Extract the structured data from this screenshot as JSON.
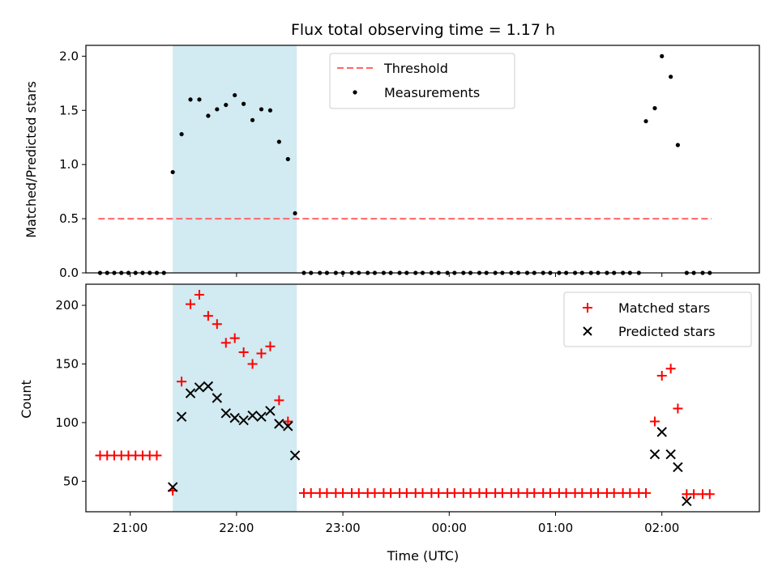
{
  "chart_data": [
    {
      "type": "scatter",
      "title": "Flux total observing time = 1.17 h",
      "xlabel": "",
      "ylabel": "Matched/Predicted stars",
      "ylim": [
        0,
        2.1
      ],
      "yticks": [
        0.0,
        0.5,
        1.0,
        1.5,
        2.0
      ],
      "ytick_labels": [
        "0.0",
        "0.5",
        "1.0",
        "1.5",
        "2.0"
      ],
      "x_range": [
        "20:35",
        "02:55"
      ],
      "xticks": [
        "21:00",
        "22:00",
        "23:00",
        "00:00",
        "01:00",
        "02:00"
      ],
      "grid": false,
      "legend_position": "top-center",
      "highlight_span": {
        "x_start": "21:24",
        "x_end": "22:34",
        "color": "#add8e6"
      },
      "threshold": {
        "name": "Threshold",
        "value": 0.5,
        "x_start": "20:42",
        "x_end": "02:28",
        "color": "#ff6666",
        "style": "dashed"
      },
      "series": [
        {
          "name": "Measurements",
          "color": "#000000",
          "marker": "dot",
          "x": [
            "20:43",
            "20:47",
            "20:51",
            "20:55",
            "20:59",
            "21:03",
            "21:07",
            "21:11",
            "21:15",
            "21:19",
            "21:24",
            "21:29",
            "21:34",
            "21:39",
            "21:44",
            "21:49",
            "21:54",
            "21:59",
            "22:04",
            "22:09",
            "22:14",
            "22:19",
            "22:24",
            "22:29",
            "22:33",
            "22:38",
            "22:42",
            "22:47",
            "22:51",
            "22:56",
            "23:00",
            "23:05",
            "23:09",
            "23:14",
            "23:18",
            "23:23",
            "23:27",
            "23:32",
            "23:36",
            "23:41",
            "23:45",
            "23:50",
            "23:54",
            "23:59",
            "00:03",
            "00:08",
            "00:12",
            "00:17",
            "00:21",
            "00:26",
            "00:30",
            "00:35",
            "00:39",
            "00:44",
            "00:48",
            "00:53",
            "00:57",
            "01:02",
            "01:06",
            "01:11",
            "01:15",
            "01:20",
            "01:24",
            "01:29",
            "01:33",
            "01:38",
            "01:42",
            "01:47",
            "01:51",
            "01:56",
            "02:00",
            "02:05",
            "02:09",
            "02:14",
            "02:18",
            "02:23",
            "02:27"
          ],
          "values": [
            0,
            0,
            0,
            0,
            0,
            0,
            0,
            0,
            0,
            0,
            0.93,
            1.28,
            1.6,
            1.6,
            1.45,
            1.51,
            1.55,
            1.64,
            1.56,
            1.41,
            1.51,
            1.5,
            1.21,
            1.05,
            0.55,
            0,
            0,
            0,
            0,
            0,
            0,
            0,
            0,
            0,
            0,
            0,
            0,
            0,
            0,
            0,
            0,
            0,
            0,
            0,
            0,
            0,
            0,
            0,
            0,
            0,
            0,
            0,
            0,
            0,
            0,
            0,
            0,
            0,
            0,
            0,
            0,
            0,
            0,
            0,
            0,
            0,
            0,
            0,
            1.4,
            1.52,
            2.0,
            1.81,
            1.18,
            0,
            0,
            0,
            0
          ]
        }
      ]
    },
    {
      "type": "scatter",
      "title": "",
      "xlabel": "Time (UTC)",
      "ylabel": "Count",
      "ylim": [
        24,
        218
      ],
      "yticks": [
        50,
        100,
        150,
        200
      ],
      "ytick_labels": [
        "50",
        "100",
        "150",
        "200"
      ],
      "x_range": [
        "20:35",
        "02:55"
      ],
      "xticks": [
        "21:00",
        "22:00",
        "23:00",
        "00:00",
        "01:00",
        "02:00"
      ],
      "grid": false,
      "legend_position": "top-right",
      "highlight_span": {
        "x_start": "21:24",
        "x_end": "22:34",
        "color": "#add8e6"
      },
      "series": [
        {
          "name": "Matched stars",
          "color": "#ff0000",
          "marker": "plus",
          "x": [
            "20:43",
            "20:47",
            "20:51",
            "20:55",
            "20:59",
            "21:03",
            "21:07",
            "21:11",
            "21:15",
            "21:24",
            "21:29",
            "21:34",
            "21:39",
            "21:44",
            "21:49",
            "21:54",
            "21:59",
            "22:04",
            "22:09",
            "22:14",
            "22:19",
            "22:24",
            "22:29",
            "22:38",
            "22:42",
            "22:47",
            "22:51",
            "22:56",
            "23:00",
            "23:05",
            "23:09",
            "23:14",
            "23:18",
            "23:23",
            "23:27",
            "23:32",
            "23:36",
            "23:41",
            "23:45",
            "23:50",
            "23:54",
            "23:59",
            "00:03",
            "00:08",
            "00:12",
            "00:17",
            "00:21",
            "00:26",
            "00:30",
            "00:35",
            "00:39",
            "00:44",
            "00:48",
            "00:53",
            "00:57",
            "01:02",
            "01:06",
            "01:11",
            "01:15",
            "01:20",
            "01:24",
            "01:29",
            "01:33",
            "01:38",
            "01:42",
            "01:47",
            "01:51",
            "01:56",
            "02:00",
            "02:05",
            "02:09",
            "02:14",
            "02:18",
            "02:23",
            "02:27"
          ],
          "values": [
            72,
            72,
            72,
            72,
            72,
            72,
            72,
            72,
            72,
            42,
            135,
            201,
            209,
            191,
            184,
            168,
            172,
            160,
            150,
            159,
            165,
            119,
            101,
            40,
            40,
            40,
            40,
            40,
            40,
            40,
            40,
            40,
            40,
            40,
            40,
            40,
            40,
            40,
            40,
            40,
            40,
            40,
            40,
            40,
            40,
            40,
            40,
            40,
            40,
            40,
            40,
            40,
            40,
            40,
            40,
            40,
            40,
            40,
            40,
            40,
            40,
            40,
            40,
            40,
            40,
            40,
            40,
            101,
            140,
            146,
            112,
            39,
            39,
            39,
            39
          ]
        },
        {
          "name": "Predicted stars",
          "color": "#000000",
          "marker": "x",
          "x": [
            "21:24",
            "21:29",
            "21:34",
            "21:39",
            "21:44",
            "21:49",
            "21:54",
            "21:59",
            "22:04",
            "22:09",
            "22:14",
            "22:19",
            "22:24",
            "22:29",
            "22:33",
            "01:56",
            "02:00",
            "02:05",
            "02:09",
            "02:14"
          ],
          "values": [
            45,
            105,
            125,
            130,
            131,
            121,
            108,
            104,
            102,
            106,
            105,
            110,
            99,
            97,
            72,
            73,
            92,
            73,
            62,
            33
          ]
        }
      ]
    }
  ]
}
